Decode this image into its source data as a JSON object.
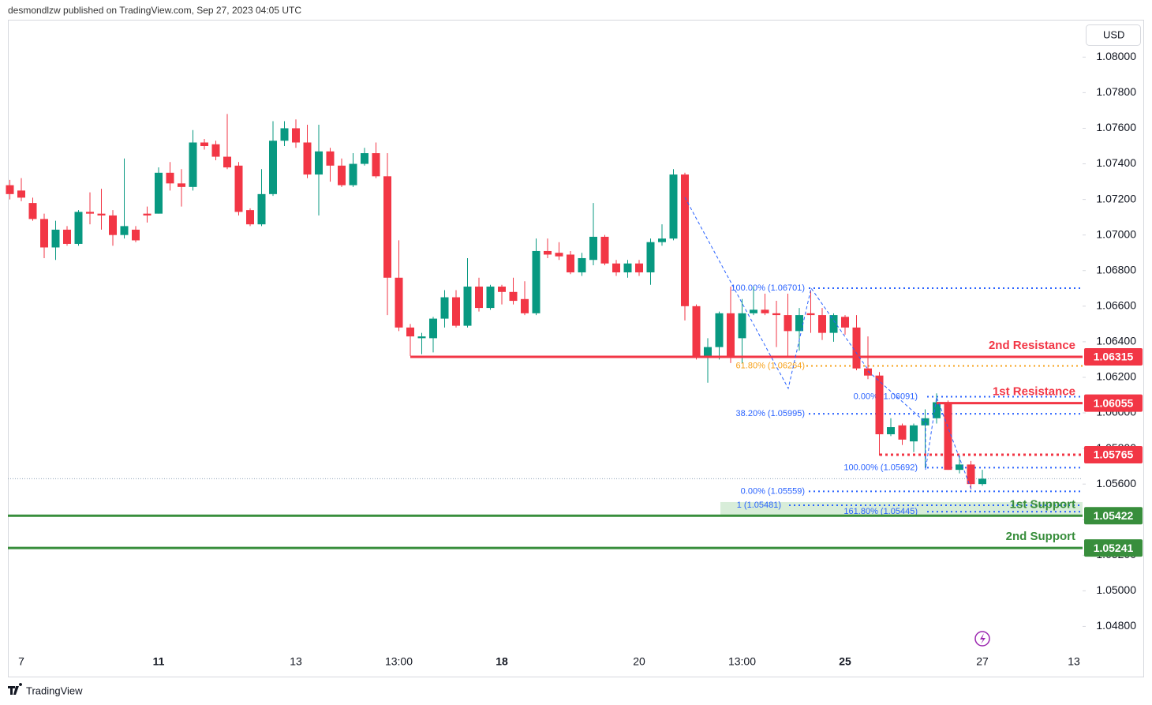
{
  "header": {
    "author_line": "desmondlzw published on TradingView.com, Sep 27, 2023 04:05 UTC",
    "currency": "USD",
    "brand": "TradingView"
  },
  "chart_data": {
    "type": "candlestick",
    "categories": [
      null,
      "7",
      null,
      null,
      null,
      null,
      null,
      null,
      null,
      null,
      null,
      null,
      null,
      "11",
      null,
      null,
      null,
      null,
      null,
      null,
      null,
      null,
      null,
      null,
      null,
      "13",
      null,
      null,
      null,
      null,
      null,
      null,
      null,
      null,
      "13:00",
      null,
      null,
      null,
      null,
      null,
      null,
      null,
      null,
      "18",
      null,
      null,
      null,
      null,
      null,
      null,
      null,
      null,
      null,
      null,
      null,
      "20",
      null,
      null,
      null,
      null,
      null,
      null,
      null,
      null,
      "13:00",
      null,
      null,
      null,
      null,
      null,
      null,
      null,
      null,
      "25",
      null,
      null,
      null,
      null,
      null,
      null,
      null,
      null,
      null,
      null,
      null,
      "27",
      null,
      null,
      null,
      null,
      null,
      null,
      null,
      "13"
    ],
    "open": [
      1.0728,
      1.0725,
      1.0718,
      1.0709,
      1.0693,
      1.0703,
      1.0695,
      1.0713,
      1.0712,
      1.0711,
      1.07,
      1.0703,
      1.0712,
      1.0712,
      1.0735,
      1.0729,
      1.0727,
      1.0752,
      1.0751,
      1.0744,
      1.0739,
      1.0714,
      1.0706,
      1.0723,
      1.0753,
      1.076,
      1.0752,
      1.0734,
      1.0747,
      1.0739,
      1.0728,
      1.074,
      1.0746,
      1.0733,
      1.0676,
      1.0648,
      1.0642,
      1.0642,
      1.0653,
      1.0665,
      1.0649,
      1.0671,
      1.0659,
      1.0671,
      1.0668,
      1.0664,
      1.0656,
      1.0691,
      1.069,
      1.0689,
      1.0679,
      1.0686,
      1.0699,
      1.0684,
      1.0679,
      1.0684,
      1.0679,
      1.0696,
      1.0698,
      1.0734,
      1.066,
      1.0631,
      1.0637,
      1.0656,
      1.0642,
      1.0656,
      1.0658,
      1.0656,
      1.0655,
      1.0646,
      1.0656,
      1.0655,
      1.0645,
      1.0654,
      1.0648,
      1.0625,
      1.0621,
      1.0588,
      1.0593,
      1.0584,
      1.0593,
      1.0597,
      1.0606,
      1.0568,
      1.0571,
      1.056,
      null,
      null,
      null,
      null,
      null,
      null,
      null,
      null
    ],
    "high": [
      1.0731,
      1.0732,
      1.0721,
      1.0712,
      1.0708,
      1.0705,
      1.0714,
      1.0724,
      1.0726,
      1.0714,
      1.0743,
      1.0705,
      1.0716,
      1.0738,
      1.0741,
      1.0737,
      1.0759,
      1.0754,
      1.0753,
      1.0768,
      1.0741,
      1.0715,
      1.0737,
      1.0764,
      1.0764,
      1.0765,
      1.0762,
      1.0762,
      1.0749,
      1.0743,
      1.0746,
      1.0749,
      1.0752,
      1.0746,
      1.0697,
      1.065,
      1.0645,
      1.0654,
      1.0669,
      1.0669,
      1.0687,
      1.0676,
      1.0672,
      1.0672,
      1.0676,
      1.0674,
      1.0698,
      1.0698,
      1.0696,
      1.0691,
      1.069,
      1.0718,
      1.07,
      1.0686,
      1.0686,
      1.0686,
      1.0698,
      1.0706,
      1.0737,
      1.0735,
      1.0661,
      1.0642,
      1.0657,
      1.0671,
      1.0664,
      1.0671,
      1.0667,
      1.0663,
      1.0667,
      1.0659,
      1.0669,
      1.0659,
      1.0656,
      1.0655,
      1.0655,
      1.0643,
      1.0623,
      1.0597,
      1.0594,
      1.0594,
      1.0602,
      1.0611,
      1.0607,
      1.0576,
      1.0573,
      1.0568,
      null,
      null,
      null,
      null,
      null,
      null,
      null,
      null
    ],
    "low": [
      1.072,
      1.0719,
      1.0708,
      1.0687,
      1.0686,
      1.0694,
      1.0694,
      1.0706,
      1.0703,
      1.0694,
      1.0698,
      1.0696,
      1.0707,
      1.0712,
      1.0725,
      1.0716,
      1.0725,
      1.0748,
      1.0742,
      1.0737,
      1.0711,
      1.0705,
      1.0705,
      1.0722,
      1.075,
      1.0749,
      1.0732,
      1.0711,
      1.073,
      1.0727,
      1.0727,
      1.0739,
      1.0732,
      1.0655,
      1.0646,
      1.0632,
      1.0633,
      1.0634,
      1.0648,
      1.0648,
      1.0648,
      1.0657,
      1.0658,
      1.0661,
      1.0661,
      1.0655,
      1.0655,
      1.0687,
      1.0686,
      1.0678,
      1.0677,
      1.0683,
      1.0683,
      1.0677,
      1.0676,
      1.0677,
      1.0672,
      1.0694,
      1.0697,
      1.0652,
      1.063,
      1.0617,
      1.063,
      1.0628,
      1.0628,
      1.0655,
      1.0655,
      1.0637,
      1.0632,
      1.0635,
      1.0645,
      1.0641,
      1.064,
      1.0644,
      1.0624,
      1.0619,
      1.0576,
      1.0587,
      1.0582,
      1.0578,
      1.0569,
      1.0594,
      1.0568,
      1.0566,
      1.0557,
      1.0559,
      null,
      null,
      null,
      null,
      null,
      null,
      null,
      null
    ],
    "close": [
      1.0723,
      1.0721,
      1.0709,
      1.0693,
      1.0703,
      1.0695,
      1.0713,
      1.0712,
      1.0711,
      1.07,
      1.0705,
      1.0697,
      1.0711,
      1.0735,
      1.0729,
      1.0727,
      1.0752,
      1.075,
      1.0744,
      1.0738,
      1.0713,
      1.0706,
      1.0723,
      1.0753,
      1.076,
      1.0752,
      1.0734,
      1.0747,
      1.0739,
      1.0728,
      1.074,
      1.0746,
      1.0733,
      1.0676,
      1.0648,
      1.0643,
      1.0643,
      1.0653,
      1.0665,
      1.0649,
      1.0671,
      1.0659,
      1.0671,
      1.0668,
      1.0663,
      1.0656,
      1.0691,
      1.0689,
      1.0688,
      1.0679,
      1.0687,
      1.0699,
      1.0684,
      1.0679,
      1.0684,
      1.0679,
      1.0696,
      1.0698,
      1.0734,
      1.066,
      1.0631,
      1.0637,
      1.0656,
      1.0631,
      1.0656,
      1.0658,
      1.0656,
      1.0655,
      1.0646,
      1.0655,
      1.0655,
      1.0645,
      1.0655,
      1.0648,
      1.0625,
      1.0621,
      1.0588,
      1.0592,
      1.0585,
      1.0593,
      1.0597,
      1.0606,
      1.0568,
      1.0571,
      1.056,
      1.0563,
      null,
      null,
      null,
      null,
      null,
      null,
      null,
      null
    ],
    "up_color": "#089981",
    "down_color": "#f23645",
    "ylim": [
      1.0466,
      1.0821
    ],
    "yticks": [
      {
        "value": 1.048,
        "label": "1.04800"
      },
      {
        "value": 1.05,
        "label": "1.05000"
      },
      {
        "value": 1.052,
        "label": "1.05200"
      },
      {
        "value": 1.054,
        "label": "1.05400"
      },
      {
        "value": 1.056,
        "label": "1.05600"
      },
      {
        "value": 1.058,
        "label": "1.05800"
      },
      {
        "value": 1.06,
        "label": "1.06000"
      },
      {
        "value": 1.062,
        "label": "1.06200"
      },
      {
        "value": 1.064,
        "label": "1.06400"
      },
      {
        "value": 1.066,
        "label": "1.06600"
      },
      {
        "value": 1.068,
        "label": "1.06800"
      },
      {
        "value": 1.07,
        "label": "1.07000"
      },
      {
        "value": 1.072,
        "label": "1.07200"
      },
      {
        "value": 1.074,
        "label": "1.07400"
      },
      {
        "value": 1.076,
        "label": "1.07600"
      },
      {
        "value": 1.078,
        "label": "1.07800"
      },
      {
        "value": 1.08,
        "label": "1.08000"
      }
    ],
    "grid": false,
    "levels": [
      {
        "name": "2nd Resistance",
        "value": 1.06315,
        "color": "#f23645"
      },
      {
        "name": "1st Resistance",
        "value": 1.06055,
        "color": "#f23645"
      },
      {
        "value": 1.05765,
        "color": "#f23645",
        "style": "dotted"
      },
      {
        "name": "1st Support",
        "value": 1.05422,
        "color": "#388e3c"
      },
      {
        "name": "2nd Support",
        "value": 1.05241,
        "color": "#388e3c"
      }
    ],
    "fib_levels": [
      {
        "label": "100.00% (1.06701)",
        "value": 1.06701,
        "color": "#2962ff"
      },
      {
        "label": "61.80% (1.06264)",
        "value": 1.06264,
        "color": "#f7a21b"
      },
      {
        "label": "0.00% (1.06091)",
        "value": 1.06091,
        "color": "#2962ff"
      },
      {
        "label": "38.20% (1.05995)",
        "value": 1.05995,
        "color": "#2962ff"
      },
      {
        "label": "100.00% (1.05692)",
        "value": 1.05692,
        "color": "#2962ff"
      },
      {
        "label": "0.00% (1.05559)",
        "value": 1.05559,
        "color": "#2962ff"
      },
      {
        "label": "1 (1.05481)",
        "value": 1.05481,
        "color": "#2962ff"
      },
      {
        "label": "161.80% (1.05445)",
        "value": 1.05445,
        "color": "#2962ff"
      }
    ]
  }
}
